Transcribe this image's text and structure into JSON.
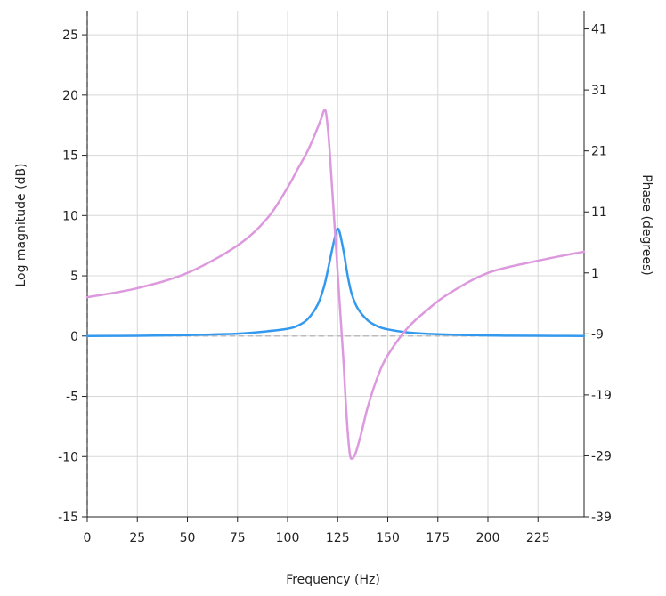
{
  "chart_data": {
    "type": "line",
    "title": "",
    "xlabel": "Frequency (Hz)",
    "ylabel": "Log magnitude (dB)",
    "y2label": "Phase (degrees)",
    "xlim": [
      0,
      248
    ],
    "ylim": [
      -15,
      27
    ],
    "y2lim": [
      -39,
      44
    ],
    "x_ticks": [
      0,
      25,
      50,
      75,
      100,
      125,
      150,
      175,
      200,
      225
    ],
    "y_ticks": [
      -15,
      -10,
      -5,
      0,
      5,
      10,
      15,
      20,
      25
    ],
    "y2_ticks": [
      -39,
      -29,
      -19,
      -9,
      1,
      11,
      21,
      31,
      41
    ],
    "grid": true,
    "series": [
      {
        "axis": "left",
        "color": "#3399ee",
        "points": [
          [
            0,
            0
          ],
          [
            25,
            0.02
          ],
          [
            50,
            0.08
          ],
          [
            75,
            0.2
          ],
          [
            90,
            0.4
          ],
          [
            100,
            0.6
          ],
          [
            105,
            0.85
          ],
          [
            110,
            1.4
          ],
          [
            115,
            2.6
          ],
          [
            118,
            4.0
          ],
          [
            120,
            5.4
          ],
          [
            122,
            7.0
          ],
          [
            124,
            8.5
          ],
          [
            125,
            8.9
          ],
          [
            126,
            8.6
          ],
          [
            128,
            7.0
          ],
          [
            130,
            5.0
          ],
          [
            132,
            3.5
          ],
          [
            135,
            2.3
          ],
          [
            140,
            1.3
          ],
          [
            145,
            0.8
          ],
          [
            150,
            0.55
          ],
          [
            160,
            0.3
          ],
          [
            175,
            0.15
          ],
          [
            200,
            0.05
          ],
          [
            225,
            0.02
          ],
          [
            248,
            0
          ]
        ]
      },
      {
        "axis": "right",
        "color": "#dd99dd",
        "points": [
          [
            0,
            -3
          ],
          [
            25,
            -1.5
          ],
          [
            50,
            1
          ],
          [
            75,
            5.5
          ],
          [
            90,
            10
          ],
          [
            100,
            15
          ],
          [
            105,
            18
          ],
          [
            110,
            21
          ],
          [
            114,
            24
          ],
          [
            117,
            26.5
          ],
          [
            118,
            27.5
          ],
          [
            119,
            27.5
          ],
          [
            120,
            25
          ],
          [
            121,
            21
          ],
          [
            122,
            16
          ],
          [
            123,
            11
          ],
          [
            124,
            6
          ],
          [
            125,
            1
          ],
          [
            126,
            -4
          ],
          [
            127,
            -9
          ],
          [
            128,
            -14
          ],
          [
            129,
            -20
          ],
          [
            130,
            -25
          ],
          [
            131,
            -28.5
          ],
          [
            132,
            -29.5
          ],
          [
            134,
            -28.5
          ],
          [
            137,
            -25
          ],
          [
            140,
            -21
          ],
          [
            145,
            -16
          ],
          [
            150,
            -12.5
          ],
          [
            160,
            -8
          ],
          [
            170,
            -5
          ],
          [
            180,
            -2.5
          ],
          [
            200,
            1
          ],
          [
            225,
            3
          ],
          [
            248,
            4.5
          ]
        ]
      }
    ]
  }
}
